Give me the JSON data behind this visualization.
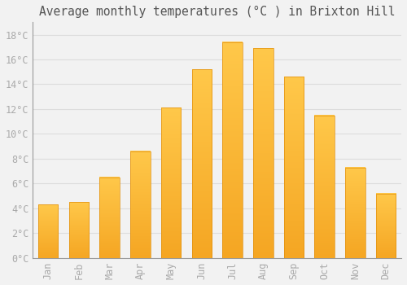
{
  "months": [
    "Jan",
    "Feb",
    "Mar",
    "Apr",
    "May",
    "Jun",
    "Jul",
    "Aug",
    "Sep",
    "Oct",
    "Nov",
    "Dec"
  ],
  "values": [
    4.3,
    4.5,
    6.5,
    8.6,
    12.1,
    15.2,
    17.4,
    16.9,
    14.6,
    11.5,
    7.3,
    5.2
  ],
  "bar_color_bottom": "#F5A623",
  "bar_color_top": "#FFC84A",
  "background_color": "#F2F2F2",
  "grid_color": "#DDDDDD",
  "title": "Average monthly temperatures (°C ) in Brixton Hill",
  "title_fontsize": 10.5,
  "tick_label_color": "#AAAAAA",
  "axis_label_fontsize": 8.5,
  "ylim": [
    0,
    19
  ],
  "yticks": [
    0,
    2,
    4,
    6,
    8,
    10,
    12,
    14,
    16,
    18
  ],
  "ytick_labels": [
    "0°C",
    "2°C",
    "4°C",
    "6°C",
    "8°C",
    "10°C",
    "12°C",
    "14°C",
    "16°C",
    "18°C"
  ]
}
